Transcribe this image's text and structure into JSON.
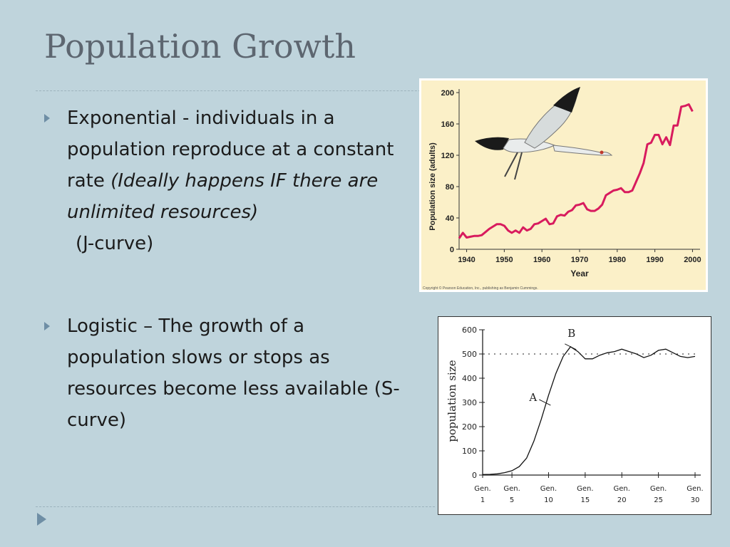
{
  "slide": {
    "title": "Population Growth",
    "bullets": [
      {
        "lead": "Exponential - individuals in a population reproduce at a constant rate ",
        "italic": "(Ideally happens IF there are unlimited resources)",
        "sub": "(J-curve)"
      },
      {
        "lead": "Logistic – The growth of a population slows or stops as resources become less available (S-curve)",
        "italic": "",
        "sub": ""
      }
    ]
  },
  "colors": {
    "background": "#bfd4dc",
    "title": "#5d6670",
    "bullet_marker": "#6e8ea5",
    "chart1_line": "#d81b5e",
    "chart1_bg": "#fbf0c8"
  },
  "chart_data": [
    {
      "type": "line",
      "title": "",
      "xlabel": "Year",
      "ylabel": "Population size (adults)",
      "xlim": [
        1938,
        2002
      ],
      "ylim": [
        0,
        200
      ],
      "xticks": [
        1940,
        1950,
        1960,
        1970,
        1980,
        1990,
        2000
      ],
      "yticks": [
        0,
        40,
        80,
        120,
        160,
        200
      ],
      "copyright": "Copyright © Pearson Education, Inc., publishing as Benjamin Cummings.",
      "series": [
        {
          "x": [
            1938,
            1939,
            1940,
            1941,
            1942,
            1943,
            1944,
            1945,
            1946,
            1947,
            1948,
            1949,
            1950,
            1951,
            1952,
            1953,
            1954,
            1955,
            1956,
            1957,
            1958,
            1959,
            1960,
            1961,
            1962,
            1963,
            1964,
            1965,
            1966,
            1967,
            1968,
            1969,
            1970,
            1971,
            1972,
            1973,
            1974,
            1975,
            1976,
            1977,
            1978,
            1979,
            1980,
            1981,
            1982,
            1983,
            1984,
            1985,
            1986,
            1987,
            1988,
            1989,
            1990,
            1991,
            1992,
            1993,
            1994,
            1995,
            1996,
            1997,
            1998,
            1999,
            2000
          ],
          "y": [
            14,
            21,
            15,
            16,
            17,
            17,
            18,
            22,
            26,
            29,
            32,
            32,
            30,
            24,
            21,
            24,
            21,
            28,
            24,
            26,
            32,
            33,
            36,
            39,
            32,
            33,
            42,
            44,
            43,
            48,
            50,
            56,
            57,
            59,
            51,
            49,
            49,
            52,
            57,
            69,
            72,
            75,
            76,
            78,
            73,
            73,
            75,
            86,
            97,
            110,
            134,
            136,
            146,
            146,
            134,
            143,
            133,
            158,
            158,
            182,
            183,
            185,
            176
          ]
        }
      ]
    },
    {
      "type": "line",
      "title": "",
      "xlabel": "",
      "ylabel": "population size",
      "xlim": [
        1,
        30
      ],
      "ylim": [
        0,
        600
      ],
      "yticks": [
        0,
        100,
        200,
        300,
        400,
        500,
        600
      ],
      "xticks": [
        {
          "value": 1,
          "label": "Gen.",
          "num": "1"
        },
        {
          "value": 5,
          "label": "Gen.",
          "num": "5"
        },
        {
          "value": 10,
          "label": "Gen.",
          "num": "10"
        },
        {
          "value": 15,
          "label": "Gen.",
          "num": "15"
        },
        {
          "value": 20,
          "label": "Gen.",
          "num": "20"
        },
        {
          "value": 25,
          "label": "Gen.",
          "num": "25"
        },
        {
          "value": 30,
          "label": "Gen.",
          "num": "30"
        }
      ],
      "carrying_capacity": 500,
      "annotations": [
        {
          "label": "A",
          "x": 9.5,
          "y": 300
        },
        {
          "label": "B",
          "x": 13,
          "y": 530
        }
      ],
      "series": [
        {
          "x": [
            1,
            2,
            3,
            4,
            5,
            6,
            7,
            8,
            9,
            10,
            11,
            12,
            13,
            14,
            15,
            16,
            17,
            18,
            19,
            20,
            21,
            22,
            23,
            24,
            25,
            26,
            27,
            28,
            29,
            30
          ],
          "y": [
            2,
            3,
            5,
            10,
            18,
            35,
            70,
            140,
            230,
            330,
            420,
            490,
            530,
            510,
            480,
            480,
            495,
            505,
            510,
            520,
            510,
            500,
            485,
            495,
            515,
            520,
            505,
            490,
            485,
            490
          ]
        }
      ]
    }
  ]
}
